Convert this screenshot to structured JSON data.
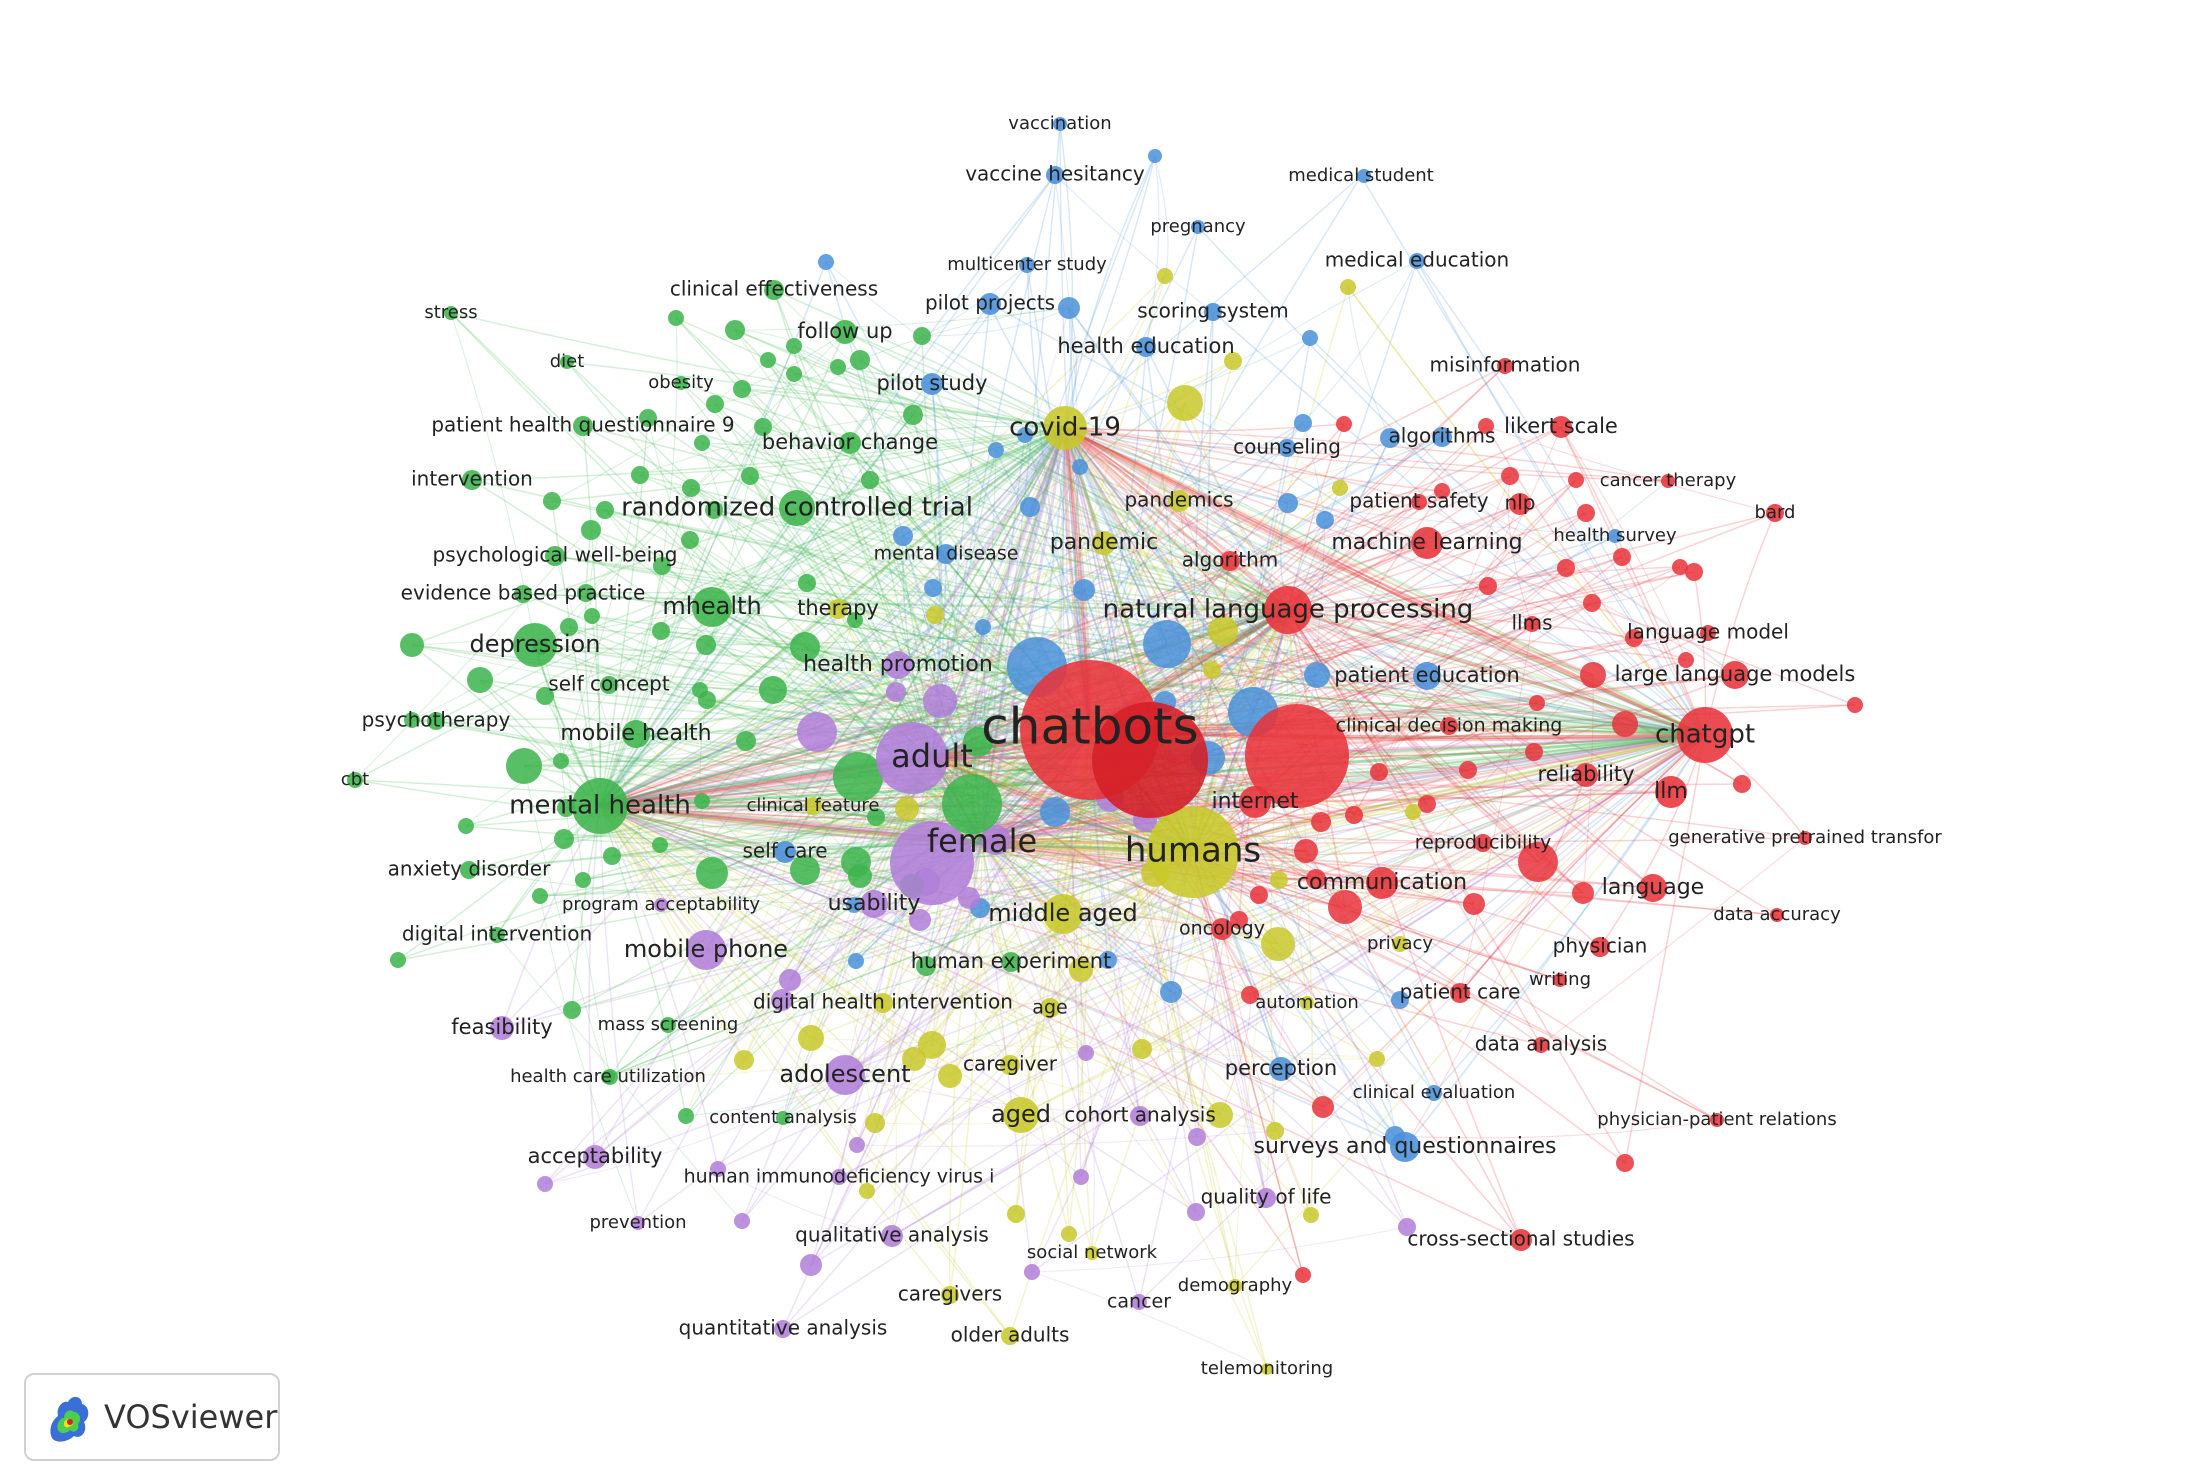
{
  "colors": {
    "red": "#e8333a",
    "green": "#3cb44b",
    "blue": "#4a90d9",
    "yellow": "#c8c82a",
    "purple": "#b07ed8"
  },
  "logo": {
    "text": "VOSviewer",
    "icon": "vosviewer-logo-icon"
  },
  "nodes": [
    {
      "label": "chatbots",
      "c": "red",
      "s": 70,
      "f": 50
    },
    {
      "label": "humans",
      "c": "yellow",
      "s": 46,
      "f": 34
    },
    {
      "label": "female",
      "c": "purple",
      "s": 42,
      "f": 32
    },
    {
      "label": "adult",
      "c": "purple",
      "s": 36,
      "f": 32
    },
    {
      "label": "mental health",
      "c": "green",
      "s": 28,
      "f": 26
    },
    {
      "label": "natural language processing",
      "c": "red",
      "s": 24,
      "f": 26
    },
    {
      "label": "chatgpt",
      "c": "red",
      "s": 28,
      "f": 26
    },
    {
      "label": "covid-19",
      "c": "yellow",
      "s": 22,
      "f": 26
    },
    {
      "label": "randomized controlled trial",
      "c": "green",
      "s": 18,
      "f": 26
    },
    {
      "label": "mhealth",
      "c": "green",
      "s": 20,
      "f": 24
    },
    {
      "label": "depression",
      "c": "green",
      "s": 22,
      "f": 24
    },
    {
      "label": "mobile phone",
      "c": "purple",
      "s": 20,
      "f": 24
    },
    {
      "label": "middle aged",
      "c": "yellow",
      "s": 20,
      "f": 24
    },
    {
      "label": "adolescent",
      "c": "purple",
      "s": 20,
      "f": 24
    },
    {
      "label": "aged",
      "c": "yellow",
      "s": 18,
      "f": 24
    },
    {
      "label": "internet",
      "c": "red",
      "s": 16,
      "f": 22
    },
    {
      "label": "communication",
      "c": "red",
      "s": 16,
      "f": 22
    },
    {
      "label": "language",
      "c": "red",
      "s": 14,
      "f": 22
    },
    {
      "label": "llm",
      "c": "red",
      "s": 16,
      "f": 22
    },
    {
      "label": "machine learning",
      "c": "red",
      "s": 16,
      "f": 22
    },
    {
      "label": "surveys and questionnaires",
      "c": "blue",
      "s": 15,
      "f": 22
    },
    {
      "label": "mobile health",
      "c": "green",
      "s": 14,
      "f": 22
    },
    {
      "label": "health promotion",
      "c": "purple",
      "s": 14,
      "f": 22
    },
    {
      "label": "usability",
      "c": "purple",
      "s": 14,
      "f": 22
    },
    {
      "label": "pandemic",
      "c": "yellow",
      "s": 12,
      "f": 22
    },
    {
      "label": "large language models",
      "c": "red",
      "s": 14,
      "f": 21
    },
    {
      "label": "patient education",
      "c": "blue",
      "s": 14,
      "f": 21
    },
    {
      "label": "health education",
      "c": "blue",
      "s": 10,
      "f": 21
    },
    {
      "label": "behavior change",
      "c": "green",
      "s": 11,
      "f": 21
    },
    {
      "label": "follow up",
      "c": "green",
      "s": 12,
      "f": 21
    },
    {
      "label": "pilot study",
      "c": "blue",
      "s": 11,
      "f": 21
    },
    {
      "label": "human experiment",
      "c": "green",
      "s": 10,
      "f": 21
    },
    {
      "label": "feasibility",
      "c": "purple",
      "s": 12,
      "f": 21
    },
    {
      "label": "acceptability",
      "c": "purple",
      "s": 12,
      "f": 21
    },
    {
      "label": "perception",
      "c": "blue",
      "s": 12,
      "f": 21
    },
    {
      "label": "likert scale",
      "c": "red",
      "s": 11,
      "f": 21
    },
    {
      "label": "reliability",
      "c": "red",
      "s": 12,
      "f": 21
    },
    {
      "label": "therapy",
      "c": "yellow",
      "s": 10,
      "f": 21
    },
    {
      "label": "medical education",
      "c": "blue",
      "s": 8,
      "f": 20
    },
    {
      "label": "misinformation",
      "c": "red",
      "s": 8,
      "f": 20
    },
    {
      "label": "pilot projects",
      "c": "blue",
      "s": 11,
      "f": 20
    },
    {
      "label": "scoring system",
      "c": "blue",
      "s": 9,
      "f": 20
    },
    {
      "label": "vaccine hesitancy",
      "c": "blue",
      "s": 9,
      "f": 20
    },
    {
      "label": "clinical effectiveness",
      "c": "green",
      "s": 10,
      "f": 20
    },
    {
      "label": "pandemics",
      "c": "yellow",
      "s": 11,
      "f": 20
    },
    {
      "label": "algorithm",
      "c": "red",
      "s": 10,
      "f": 20
    },
    {
      "label": "algorithms",
      "c": "blue",
      "s": 10,
      "f": 20
    },
    {
      "label": "counseling",
      "c": "blue",
      "s": 9,
      "f": 20
    },
    {
      "label": "patient safety",
      "c": "red",
      "s": 8,
      "f": 20
    },
    {
      "label": "nlp",
      "c": "red",
      "s": 11,
      "f": 20
    },
    {
      "label": "llms",
      "c": "red",
      "s": 8,
      "f": 20
    },
    {
      "label": "language model",
      "c": "red",
      "s": 8,
      "f": 20
    },
    {
      "label": "physician",
      "c": "red",
      "s": 10,
      "f": 20
    },
    {
      "label": "data analysis",
      "c": "red",
      "s": 8,
      "f": 20
    },
    {
      "label": "patient care",
      "c": "red",
      "s": 10,
      "f": 20
    },
    {
      "label": "cross-sectional studies",
      "c": "red",
      "s": 11,
      "f": 20
    },
    {
      "label": "quality of life",
      "c": "purple",
      "s": 10,
      "f": 20
    },
    {
      "label": "qualitative analysis",
      "c": "purple",
      "s": 11,
      "f": 20
    },
    {
      "label": "caregiver",
      "c": "yellow",
      "s": 10,
      "f": 20
    },
    {
      "label": "cohort analysis",
      "c": "purple",
      "s": 10,
      "f": 20
    },
    {
      "label": "caregivers",
      "c": "yellow",
      "s": 9,
      "f": 20
    },
    {
      "label": "older adults",
      "c": "yellow",
      "s": 9,
      "f": 20
    },
    {
      "label": "quantitative analysis",
      "c": "purple",
      "s": 9,
      "f": 20
    },
    {
      "label": "self care",
      "c": "blue",
      "s": 11,
      "f": 20
    },
    {
      "label": "self concept",
      "c": "green",
      "s": 9,
      "f": 20
    },
    {
      "label": "psychotherapy",
      "c": "green",
      "s": 9,
      "f": 20
    },
    {
      "label": "evidence based practice",
      "c": "green",
      "s": 9,
      "f": 20
    },
    {
      "label": "psychological well-being",
      "c": "green",
      "s": 10,
      "f": 20
    },
    {
      "label": "intervention",
      "c": "green",
      "s": 10,
      "f": 20
    },
    {
      "label": "patient health questionnaire 9",
      "c": "green",
      "s": 10,
      "f": 20
    },
    {
      "label": "anxiety disorder",
      "c": "green",
      "s": 9,
      "f": 20
    },
    {
      "label": "digital intervention",
      "c": "green",
      "s": 8,
      "f": 20
    },
    {
      "label": "digital health intervention",
      "c": "yellow",
      "s": 10,
      "f": 20
    },
    {
      "label": "mental disease",
      "c": "blue",
      "s": 10,
      "f": 19
    },
    {
      "label": "reproducibility",
      "c": "red",
      "s": 9,
      "f": 19
    },
    {
      "label": "clinical decision making",
      "c": "red",
      "s": 9,
      "f": 19
    },
    {
      "label": "oncology",
      "c": "red",
      "s": 11,
      "f": 19
    },
    {
      "label": "age",
      "c": "yellow",
      "s": 10,
      "f": 19
    },
    {
      "label": "multicenter study",
      "c": "blue",
      "s": 8,
      "f": 18
    },
    {
      "label": "vaccination",
      "c": "blue",
      "s": 7,
      "f": 18
    },
    {
      "label": "medical student",
      "c": "blue",
      "s": 7,
      "f": 18
    },
    {
      "label": "pregnancy",
      "c": "blue",
      "s": 7,
      "f": 18
    },
    {
      "label": "cancer therapy",
      "c": "red",
      "s": 7,
      "f": 18
    },
    {
      "label": "bard",
      "c": "red",
      "s": 9,
      "f": 18
    },
    {
      "label": "health survey",
      "c": "blue",
      "s": 7,
      "f": 18
    },
    {
      "label": "generative pretrained transfor",
      "c": "red",
      "s": 7,
      "f": 18
    },
    {
      "label": "data accuracy",
      "c": "red",
      "s": 7,
      "f": 18
    },
    {
      "label": "writing",
      "c": "red",
      "s": 7,
      "f": 18
    },
    {
      "label": "privacy",
      "c": "yellow",
      "s": 8,
      "f": 18
    },
    {
      "label": "automation",
      "c": "yellow",
      "s": 7,
      "f": 18
    },
    {
      "label": "clinical evaluation",
      "c": "blue",
      "s": 8,
      "f": 18
    },
    {
      "label": "physician-patient relations",
      "c": "red",
      "s": 7,
      "f": 18
    },
    {
      "label": "demography",
      "c": "yellow",
      "s": 7,
      "f": 18
    },
    {
      "label": "cancer",
      "c": "purple",
      "s": 8,
      "f": 19
    },
    {
      "label": "social network",
      "c": "yellow",
      "s": 7,
      "f": 18
    },
    {
      "label": "telemonitoring",
      "c": "yellow",
      "s": 6,
      "f": 18
    },
    {
      "label": "prevention",
      "c": "purple",
      "s": 7,
      "f": 18
    },
    {
      "label": "human immunodeficiency virus i",
      "c": "purple",
      "s": 8,
      "f": 19
    },
    {
      "label": "content analysis",
      "c": "green",
      "s": 7,
      "f": 18
    },
    {
      "label": "health care utilization",
      "c": "green",
      "s": 7,
      "f": 18
    },
    {
      "label": "mass screening",
      "c": "green",
      "s": 8,
      "f": 18
    },
    {
      "label": "program acceptability",
      "c": "purple",
      "s": 7,
      "f": 18
    },
    {
      "label": "clinical feature",
      "c": "yellow",
      "s": 9,
      "f": 18
    },
    {
      "label": "stress",
      "c": "green",
      "s": 7,
      "f": 18
    },
    {
      "label": "diet",
      "c": "green",
      "s": 7,
      "f": 18
    },
    {
      "label": "obesity",
      "c": "green",
      "s": 7,
      "f": 18
    },
    {
      "label": "cbt",
      "c": "green",
      "s": 8,
      "f": 18
    }
  ]
}
